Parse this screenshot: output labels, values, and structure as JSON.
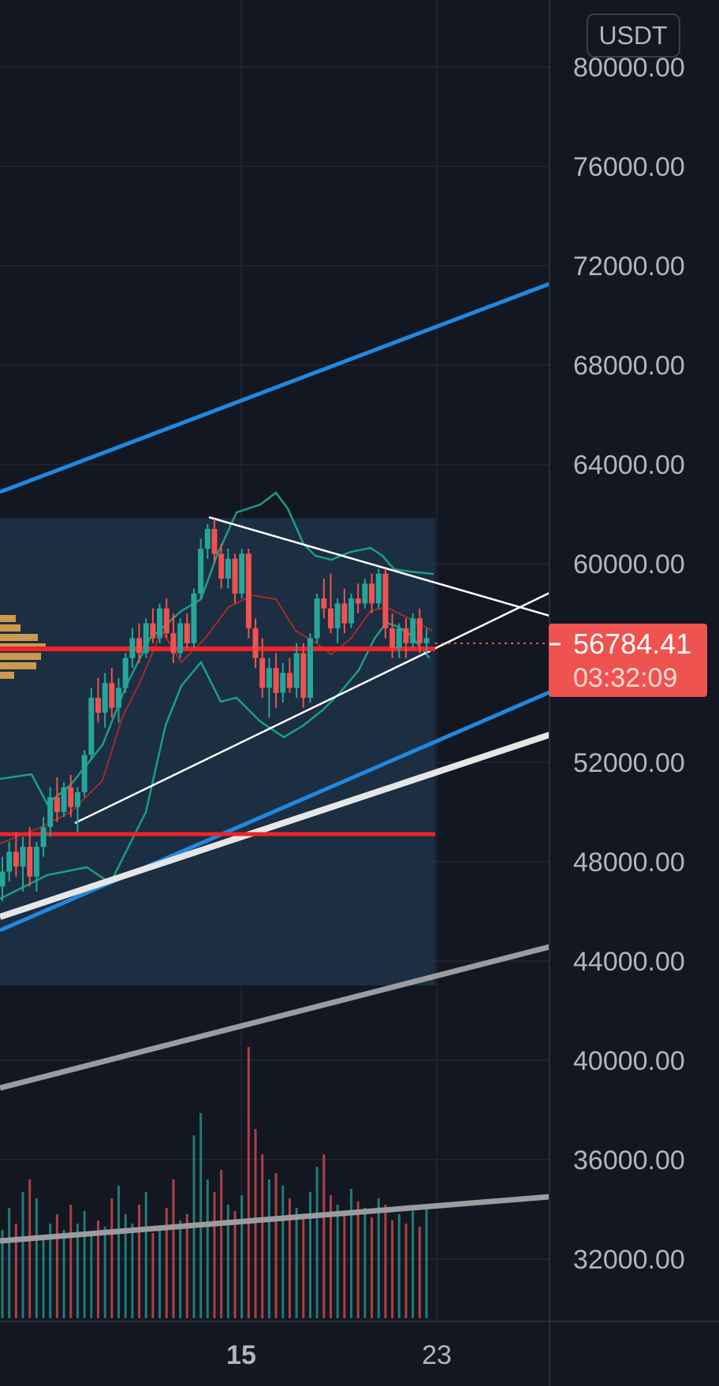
{
  "chart_data": {
    "type": "candlestick",
    "currency": "USDT",
    "y_axis_labels": [
      "80000.00",
      "76000.00",
      "72000.00",
      "68000.00",
      "64000.00",
      "60000.00",
      "52000.00",
      "48000.00",
      "44000.00",
      "40000.00",
      "36000.00",
      "32000.00"
    ],
    "y_axis_values": [
      80000,
      76000,
      72000,
      68000,
      64000,
      60000,
      52000,
      48000,
      44000,
      40000,
      36000,
      32000
    ],
    "x_tick_labels": [
      {
        "label": "15",
        "bold": true
      },
      {
        "label": "23",
        "bold": false
      }
    ],
    "last_price": "56784.41",
    "countdown": "03:32:09",
    "colors": {
      "background": "#131722",
      "up": "#26a69a",
      "down": "#ef5350",
      "channel": "#2188e0",
      "trendline": "#ffffff",
      "long_trend": "#9b9ba0",
      "support": "#f0222a",
      "bollinger": "#1b9e85",
      "basis": "#a52a2a",
      "volume_profile": "#c99a4f",
      "zone": "#1e3346",
      "price_label": "#ef5350"
    },
    "series": [
      {
        "kind": "candles",
        "values": [
          [
            47000,
            48200,
            46400,
            47600
          ],
          [
            47600,
            48800,
            47200,
            48400
          ],
          [
            48400,
            49200,
            47400,
            47800
          ],
          [
            47800,
            49000,
            46800,
            48600
          ],
          [
            48600,
            49400,
            47000,
            47400
          ],
          [
            47400,
            48800,
            46800,
            48600
          ],
          [
            48600,
            49800,
            48200,
            49400
          ],
          [
            49400,
            51000,
            49000,
            50600
          ],
          [
            50600,
            51400,
            49600,
            50000
          ],
          [
            50000,
            51200,
            49800,
            51000
          ],
          [
            51000,
            51500,
            49800,
            50200
          ],
          [
            50200,
            51000,
            49200,
            50800
          ],
          [
            50800,
            52500,
            50600,
            52300
          ],
          [
            52300,
            55000,
            52100,
            54600
          ],
          [
            54600,
            55400,
            53600,
            54000
          ],
          [
            54000,
            55600,
            53400,
            55200
          ],
          [
            55200,
            55800,
            53800,
            54200
          ],
          [
            54200,
            55400,
            53600,
            55000
          ],
          [
            55000,
            56400,
            54800,
            56200
          ],
          [
            56200,
            57400,
            55800,
            57000
          ],
          [
            57000,
            57600,
            56000,
            56400
          ],
          [
            56400,
            57800,
            56200,
            57600
          ],
          [
            57600,
            58200,
            56800,
            57000
          ],
          [
            57000,
            58400,
            56800,
            58200
          ],
          [
            58200,
            58600,
            57000,
            57200
          ],
          [
            57200,
            58000,
            56000,
            56400
          ],
          [
            56400,
            57800,
            56200,
            57600
          ],
          [
            57600,
            58000,
            56600,
            56800
          ],
          [
            56800,
            59000,
            56600,
            58800
          ],
          [
            58800,
            61000,
            58600,
            60600
          ],
          [
            60600,
            61600,
            60200,
            61400
          ],
          [
            61400,
            61800,
            60000,
            60400
          ],
          [
            60400,
            60800,
            59000,
            59400
          ],
          [
            59400,
            60600,
            59000,
            60200
          ],
          [
            60200,
            60400,
            58400,
            58800
          ],
          [
            58800,
            60600,
            58600,
            60400
          ],
          [
            60400,
            60600,
            57000,
            57400
          ],
          [
            57400,
            57800,
            55800,
            56200
          ],
          [
            56200,
            57000,
            54600,
            55000
          ],
          [
            55000,
            56200,
            53800,
            55800
          ],
          [
            55800,
            56400,
            54200,
            54800
          ],
          [
            54800,
            56000,
            54400,
            55600
          ],
          [
            55600,
            56200,
            54800,
            55000
          ],
          [
            55000,
            56800,
            54600,
            56400
          ],
          [
            56400,
            56800,
            54200,
            54600
          ],
          [
            54600,
            57200,
            54400,
            57000
          ],
          [
            57000,
            58800,
            56800,
            58600
          ],
          [
            58600,
            59400,
            57800,
            58200
          ],
          [
            58200,
            59600,
            57200,
            57400
          ],
          [
            57400,
            58600,
            56800,
            58400
          ],
          [
            58400,
            59000,
            57200,
            57600
          ],
          [
            57600,
            58800,
            57400,
            58600
          ],
          [
            58600,
            59200,
            58000,
            58400
          ],
          [
            58400,
            59400,
            58200,
            59200
          ],
          [
            59200,
            59600,
            58000,
            58400
          ],
          [
            58400,
            59800,
            58200,
            59600
          ],
          [
            59600,
            59800,
            57000,
            57400
          ],
          [
            57400,
            58000,
            56200,
            56600
          ],
          [
            56600,
            57600,
            56200,
            57400
          ],
          [
            57400,
            57800,
            56200,
            56800
          ],
          [
            56800,
            58000,
            56600,
            57800
          ],
          [
            57800,
            58200,
            56400,
            56800
          ],
          [
            56800,
            57400,
            56400,
            57000
          ]
        ]
      },
      {
        "kind": "volume",
        "values": [
          28,
          35,
          30,
          40,
          44,
          38,
          26,
          30,
          33,
          28,
          36,
          30,
          34,
          27,
          31,
          29,
          38,
          42,
          33,
          30,
          36,
          40,
          27,
          29,
          35,
          44,
          31,
          33,
          58,
          65,
          44,
          40,
          47,
          36,
          34,
          39,
          86,
          60,
          52,
          44,
          46,
          42,
          38,
          35,
          33,
          40,
          48,
          52,
          39,
          36,
          34,
          41,
          37,
          35,
          32,
          38,
          36,
          31,
          33,
          30,
          34,
          29,
          36
        ]
      }
    ]
  }
}
